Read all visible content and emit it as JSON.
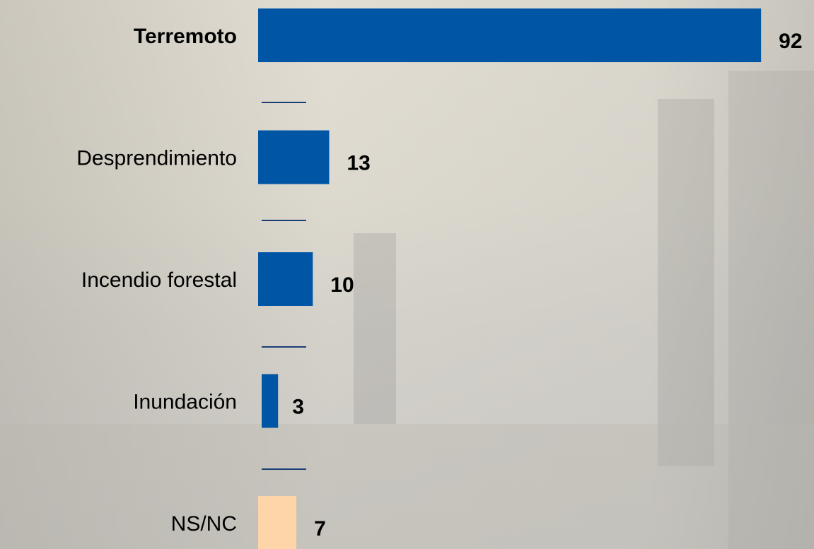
{
  "chart_data": {
    "type": "barh",
    "categories": [
      "Terremoto",
      "Desprendimiento",
      "Incendio forestal",
      "Inundación",
      "NS/NC"
    ],
    "values": [
      92,
      13,
      10,
      3,
      7
    ],
    "colors": [
      "#0055a5",
      "#0055a5",
      "#0055a5",
      "#0055a5",
      "#fdd5a8"
    ],
    "bold_categories": [
      true,
      false,
      false,
      false,
      false
    ]
  }
}
